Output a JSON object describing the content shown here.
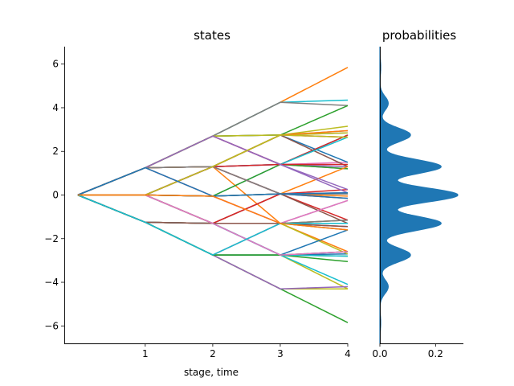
{
  "chart_data": [
    {
      "type": "line",
      "title": "states",
      "xlabel": "stage, time",
      "ylabel": "",
      "xlim": [
        -0.2,
        4.0
      ],
      "ylim": [
        -6.8,
        6.8
      ],
      "xticks": [
        1,
        2,
        3,
        4
      ],
      "yticks": [
        -6,
        -4,
        -2,
        0,
        2,
        4,
        6
      ],
      "grid": false,
      "color_cycle": [
        "#1f77b4",
        "#ff7f0e",
        "#2ca02c",
        "#d62728",
        "#9467bd",
        "#8c564b",
        "#e377c2",
        "#7f7f7f",
        "#bcbd22",
        "#17becf"
      ],
      "stage1": [
        -1.25,
        0.0,
        1.25
      ],
      "stage2": [
        -2.75,
        -1.3,
        -0.05,
        1.3,
        2.7
      ],
      "stage3": [
        -4.3,
        -2.75,
        -1.3,
        0.05,
        1.4,
        2.75,
        4.25
      ],
      "stage4": [
        -5.85,
        -4.3,
        -4.2,
        -4.1,
        -3.05,
        -2.8,
        -2.7,
        -2.6,
        -1.6,
        -1.45,
        -1.3,
        -1.15,
        -0.25,
        -0.15,
        -0.05,
        0.05,
        0.1,
        0.25,
        1.2,
        1.3,
        1.4,
        1.5,
        2.65,
        2.75,
        2.85,
        2.95,
        3.15,
        4.1,
        4.35,
        5.85
      ],
      "series": [
        {
          "values": [
            0,
            0.0,
            -0.05,
            0.05,
            0.1
          ]
        },
        {
          "values": [
            0,
            1.25,
            2.7,
            4.25,
            5.85
          ]
        },
        {
          "values": [
            0,
            -1.25,
            -2.75,
            -4.3,
            -5.85
          ]
        },
        {
          "values": [
            0,
            1.25,
            1.3,
            2.75,
            2.65
          ]
        },
        {
          "values": [
            0,
            -1.25,
            -1.3,
            -2.75,
            -2.6
          ]
        },
        {
          "values": [
            0,
            0.0,
            -0.05,
            -1.3,
            -1.45
          ]
        },
        {
          "values": [
            0,
            1.25,
            1.3,
            1.4,
            1.5
          ]
        },
        {
          "values": [
            0,
            0.0,
            1.3,
            2.75,
            2.85
          ]
        },
        {
          "values": [
            0,
            1.25,
            2.7,
            2.75,
            3.15
          ]
        },
        {
          "values": [
            0,
            -1.25,
            -1.3,
            -1.3,
            -1.15
          ]
        },
        {
          "values": [
            0,
            0.0,
            -1.3,
            -2.75,
            -2.7
          ]
        },
        {
          "values": [
            0,
            1.25,
            -0.05,
            0.05,
            -0.05
          ]
        },
        {
          "values": [
            0,
            -1.25,
            -2.75,
            -2.75,
            -3.05
          ]
        },
        {
          "values": [
            0,
            0.0,
            -1.3,
            0.05,
            0.25
          ]
        },
        {
          "values": [
            0,
            1.25,
            2.7,
            1.4,
            1.3
          ]
        },
        {
          "values": [
            0,
            -1.25,
            -2.75,
            -1.3,
            -1.6
          ]
        },
        {
          "values": [
            0,
            1.25,
            1.3,
            0.05,
            0.1
          ]
        },
        {
          "values": [
            0,
            0.0,
            1.3,
            1.4,
            1.2
          ]
        },
        {
          "values": [
            0,
            -1.25,
            -1.3,
            -2.75,
            -4.3
          ]
        },
        {
          "values": [
            0,
            1.25,
            2.7,
            4.25,
            4.35
          ]
        },
        {
          "values": [
            0,
            0.0,
            -0.05,
            1.4,
            2.75
          ]
        },
        {
          "values": [
            0,
            1.25,
            1.3,
            -1.3,
            -1.15
          ]
        },
        {
          "values": [
            0,
            -1.25,
            -2.75,
            -2.75,
            -2.8
          ]
        },
        {
          "values": [
            0,
            0.0,
            1.3,
            0.05,
            -0.15
          ]
        },
        {
          "values": [
            0,
            1.25,
            2.7,
            2.75,
            2.95
          ]
        },
        {
          "values": [
            0,
            -1.25,
            -1.3,
            0.05,
            0.05
          ]
        },
        {
          "values": [
            0,
            0.0,
            -0.05,
            -1.3,
            -1.3
          ]
        },
        {
          "values": [
            0,
            1.25,
            2.7,
            4.25,
            4.1
          ]
        },
        {
          "values": [
            0,
            -1.25,
            -2.75,
            -4.3,
            -4.3
          ]
        },
        {
          "values": [
            0,
            0.0,
            -1.3,
            -2.75,
            -4.1
          ]
        },
        {
          "values": [
            0,
            1.25,
            1.3,
            2.75,
            1.5
          ]
        },
        {
          "values": [
            0,
            -1.25,
            -1.3,
            -1.3,
            -2.6
          ]
        },
        {
          "values": [
            0,
            0.0,
            -0.05,
            1.4,
            1.2
          ]
        },
        {
          "values": [
            0,
            1.25,
            2.7,
            1.4,
            2.75
          ]
        },
        {
          "values": [
            0,
            -1.25,
            -2.75,
            -4.3,
            -4.2
          ]
        },
        {
          "values": [
            0,
            0.0,
            1.3,
            2.75,
            1.3
          ]
        },
        {
          "values": [
            0,
            1.25,
            -0.05,
            -1.3,
            -1.45
          ]
        },
        {
          "values": [
            0,
            -1.25,
            -1.3,
            -1.3,
            -0.25
          ]
        },
        {
          "values": [
            0,
            0.0,
            -1.3,
            -1.3,
            -2.7
          ]
        },
        {
          "values": [
            0,
            1.25,
            1.3,
            1.4,
            2.65
          ]
        },
        {
          "values": [
            0,
            -1.25,
            -2.75,
            -2.75,
            -1.6
          ]
        },
        {
          "values": [
            0,
            0.0,
            -0.05,
            0.05,
            1.3
          ]
        },
        {
          "values": [
            0,
            1.25,
            2.7,
            2.75,
            4.1
          ]
        },
        {
          "values": [
            0,
            -1.25,
            -1.3,
            0.05,
            -1.15
          ]
        },
        {
          "values": [
            0,
            0.0,
            1.3,
            1.4,
            0.1
          ]
        },
        {
          "values": [
            0,
            1.25,
            1.3,
            0.05,
            -1.3
          ]
        },
        {
          "values": [
            0,
            -1.25,
            -2.75,
            -1.3,
            -0.25
          ]
        },
        {
          "values": [
            0,
            0.0,
            -1.3,
            -1.3,
            -1.15
          ]
        },
        {
          "values": [
            0,
            1.25,
            2.7,
            2.75,
            2.85
          ]
        },
        {
          "values": [
            0,
            -1.25,
            -1.3,
            -2.75,
            -2.8
          ]
        },
        {
          "values": [
            0,
            0.0,
            -0.05,
            0.05,
            -0.15
          ]
        },
        {
          "values": [
            0,
            1.25,
            1.3,
            2.75,
            2.95
          ]
        },
        {
          "values": [
            0,
            -1.25,
            -2.75,
            -2.75,
            -2.6
          ]
        },
        {
          "values": [
            0,
            0.0,
            1.3,
            1.4,
            1.4
          ]
        },
        {
          "values": [
            0,
            1.25,
            2.7,
            1.4,
            0.25
          ]
        },
        {
          "values": [
            0,
            -1.25,
            -1.3,
            -1.3,
            -1.45
          ]
        },
        {
          "values": [
            0,
            0.0,
            -1.3,
            -2.75,
            -2.6
          ]
        },
        {
          "values": [
            0,
            1.25,
            1.3,
            0.05,
            0.05
          ]
        },
        {
          "values": [
            0,
            0.0,
            1.3,
            2.75,
            2.65
          ]
        },
        {
          "values": [
            0,
            -1.25,
            -2.75,
            -1.3,
            -1.3
          ]
        },
        {
          "values": [
            0,
            1.25,
            -0.05,
            0.05,
            0.1
          ]
        },
        {
          "values": [
            0,
            0.0,
            -0.05,
            -1.3,
            -1.6
          ]
        }
      ]
    },
    {
      "type": "area",
      "title": "probabilities",
      "xlabel": "",
      "ylabel": "",
      "orientation": "horizontal",
      "xlim": [
        0.0,
        0.3
      ],
      "xticks": [
        0.0,
        0.2
      ],
      "ylim": [
        -6.8,
        6.8
      ],
      "color": "#1f77b4",
      "grid": false,
      "peaks": [
        {
          "y": -5.85,
          "density": 0.003
        },
        {
          "y": -4.2,
          "density": 0.03
        },
        {
          "y": -2.75,
          "density": 0.11
        },
        {
          "y": -1.3,
          "density": 0.22
        },
        {
          "y": 0.0,
          "density": 0.28
        },
        {
          "y": 1.3,
          "density": 0.22
        },
        {
          "y": 2.75,
          "density": 0.11
        },
        {
          "y": 4.2,
          "density": 0.03
        },
        {
          "y": 5.85,
          "density": 0.003
        }
      ],
      "peak_width": 0.32
    }
  ]
}
